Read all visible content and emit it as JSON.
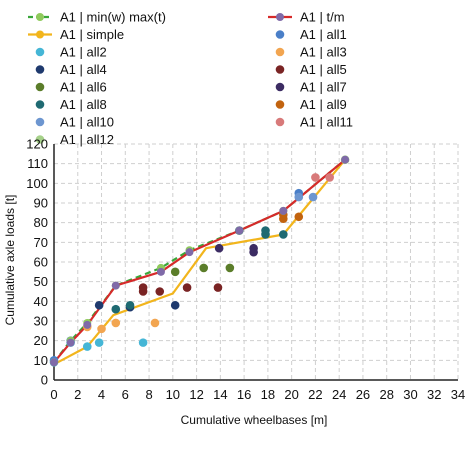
{
  "chart_data": {
    "type": "scatter",
    "xlabel": "Cumulative wheelbases [m]",
    "ylabel": "Cumulative axle loads [t]",
    "xlim": [
      0,
      34
    ],
    "ylim": [
      0,
      120
    ],
    "xticks": [
      0,
      2,
      4,
      6,
      8,
      10,
      12,
      14,
      16,
      18,
      20,
      22,
      24,
      26,
      28,
      30,
      32,
      34
    ],
    "yticks": [
      0,
      10,
      20,
      30,
      40,
      50,
      60,
      70,
      80,
      90,
      100,
      110,
      120
    ],
    "grid": true,
    "legend_position": "top",
    "series": [
      {
        "name": "A1 | min(w) max(t)",
        "kind": "line-marker",
        "dashed": true,
        "color": "#3aa63a",
        "marker_color": "#8fca5c",
        "points": [
          [
            0,
            9
          ],
          [
            1.4,
            20
          ],
          [
            2.8,
            29
          ],
          [
            5.2,
            48
          ],
          [
            9,
            57
          ],
          [
            11.4,
            66
          ],
          [
            15.6,
            76
          ],
          [
            19.3,
            86
          ],
          [
            24.5,
            112
          ]
        ]
      },
      {
        "name": "A1 | t/m",
        "kind": "line-marker",
        "dashed": false,
        "color": "#d62a2a",
        "marker_color": "#7f6aa8",
        "points": [
          [
            0,
            9
          ],
          [
            1.4,
            19
          ],
          [
            2.8,
            28
          ],
          [
            5.2,
            48
          ],
          [
            9,
            55
          ],
          [
            11.4,
            65
          ],
          [
            15.6,
            76
          ],
          [
            19.3,
            86
          ],
          [
            24.5,
            112
          ]
        ]
      },
      {
        "name": "A1 | simple",
        "kind": "line-marker",
        "dashed": false,
        "color": "#f2b51c",
        "marker_color": "#f2b51c",
        "points": [
          [
            0,
            8
          ],
          [
            2.8,
            17
          ],
          [
            5,
            33
          ],
          [
            10,
            44
          ],
          [
            12.8,
            67
          ],
          [
            19.3,
            74
          ],
          [
            24.5,
            112
          ]
        ]
      },
      {
        "name": "A1 | all1",
        "kind": "marker",
        "color": "#4a7fc8",
        "points": [
          [
            0,
            10
          ],
          [
            1.4,
            20
          ],
          [
            20.6,
            95
          ]
        ]
      },
      {
        "name": "A1 | all2",
        "kind": "marker",
        "color": "#45b6d6",
        "points": [
          [
            0,
            9
          ],
          [
            1.4,
            19
          ],
          [
            2.8,
            17
          ],
          [
            3.8,
            19
          ],
          [
            7.5,
            19
          ]
        ]
      },
      {
        "name": "A1 | all3",
        "kind": "marker",
        "color": "#f2a550",
        "points": [
          [
            2.8,
            27
          ],
          [
            4,
            26
          ],
          [
            5.2,
            29
          ],
          [
            8.5,
            29
          ]
        ]
      },
      {
        "name": "A1 | all4",
        "kind": "marker",
        "color": "#1f3a6e",
        "points": [
          [
            3.8,
            38
          ],
          [
            6.4,
            37
          ],
          [
            10.2,
            38
          ]
        ]
      },
      {
        "name": "A1 | all5",
        "kind": "marker",
        "color": "#7a2424",
        "points": [
          [
            7.5,
            47
          ],
          [
            7.5,
            45
          ],
          [
            8.9,
            45
          ],
          [
            11.2,
            47
          ],
          [
            13.8,
            47
          ]
        ]
      },
      {
        "name": "A1 | all6",
        "kind": "marker",
        "color": "#5b7d2a",
        "points": [
          [
            10.2,
            55
          ],
          [
            12.6,
            57
          ],
          [
            14.8,
            57
          ]
        ]
      },
      {
        "name": "A1 | all7",
        "kind": "marker",
        "color": "#3c2c63",
        "points": [
          [
            13.9,
            67
          ],
          [
            16.8,
            67
          ],
          [
            16.8,
            65
          ]
        ]
      },
      {
        "name": "A1 | all8",
        "kind": "marker",
        "color": "#1f6a72",
        "points": [
          [
            5.2,
            36
          ],
          [
            6.4,
            38
          ],
          [
            15.6,
            76
          ],
          [
            17.8,
            76
          ],
          [
            17.8,
            74
          ],
          [
            19.3,
            74
          ]
        ]
      },
      {
        "name": "A1 | all9",
        "kind": "marker",
        "color": "#c2630f",
        "points": [
          [
            19.3,
            84
          ],
          [
            19.3,
            82
          ],
          [
            20.6,
            83
          ]
        ]
      },
      {
        "name": "A1 | all10",
        "kind": "marker",
        "color": "#6d96d0",
        "points": [
          [
            20.6,
            93
          ],
          [
            21.8,
            93
          ]
        ]
      },
      {
        "name": "A1 | all11",
        "kind": "marker",
        "color": "#d87a7a",
        "points": [
          [
            22,
            103
          ],
          [
            23.2,
            103
          ]
        ]
      },
      {
        "name": "A1 | all12",
        "kind": "marker",
        "color": "#a6d18a",
        "points": [
          [
            24.5,
            112
          ]
        ]
      }
    ]
  },
  "legend": [
    [
      "A1 | min(w) max(t)",
      "A1 | t/m"
    ],
    [
      "A1 | simple",
      "A1 | all1"
    ],
    [
      "A1 | all2",
      "A1 | all3"
    ],
    [
      "A1 | all4",
      "A1 | all5"
    ],
    [
      "A1 | all6",
      "A1 | all7"
    ],
    [
      "A1 | all8",
      "A1 | all9"
    ],
    [
      "A1 | all10",
      "A1 | all11"
    ],
    [
      "A1 | all12"
    ]
  ]
}
